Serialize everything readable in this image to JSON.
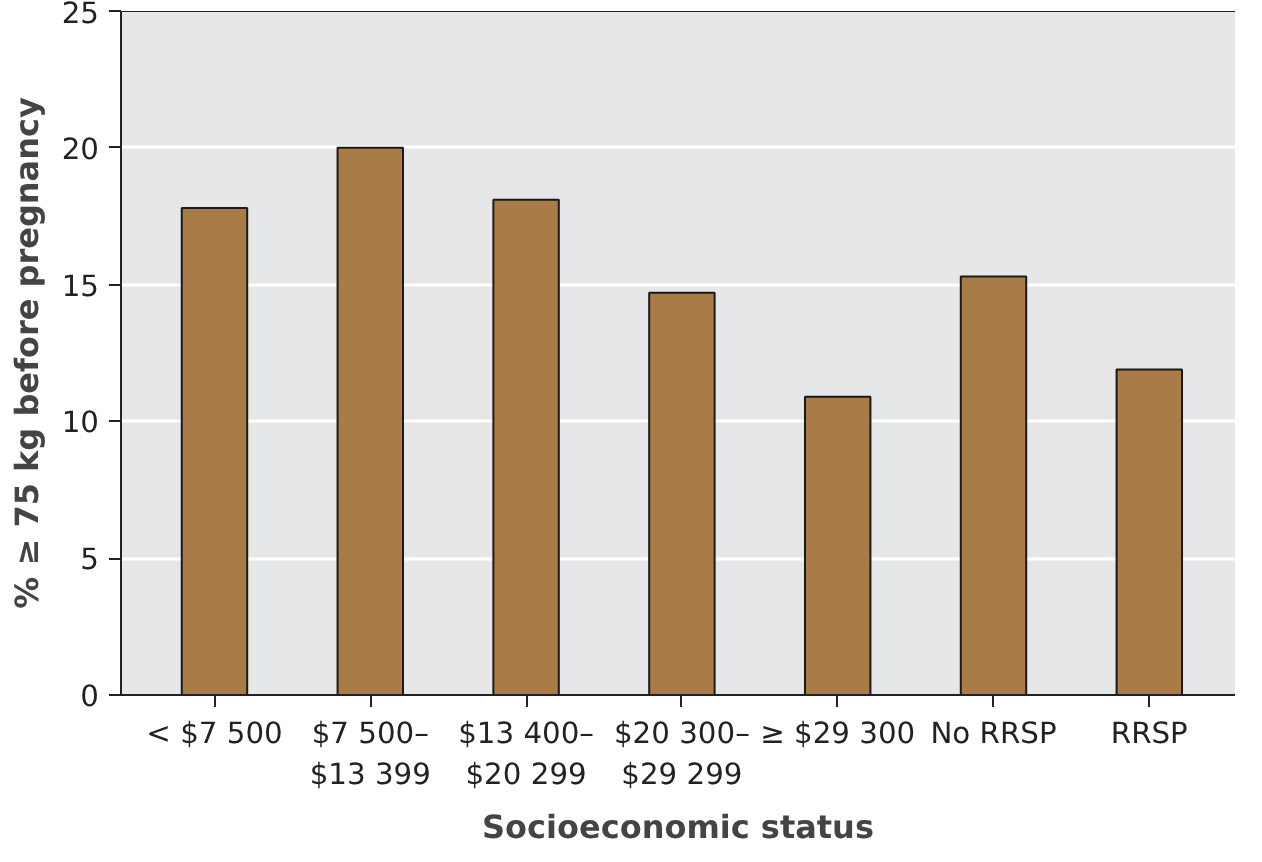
{
  "chart_data": {
    "type": "bar",
    "xlabel": "Socioeconomic status",
    "ylabel": "% ≥ 75 kg before pregnancy",
    "categories": [
      "< $7 500",
      "$7 500–\n$13 399",
      "$13 400–\n$20 299",
      "$20 300–\n$29 299",
      "≥ $29 300",
      "No RRSP",
      "RRSP"
    ],
    "values": [
      17.8,
      20.0,
      18.1,
      14.7,
      10.9,
      15.3,
      11.9
    ],
    "color": "#a97b47",
    "ylim": [
      0,
      25
    ],
    "yticks": [
      0,
      5,
      10,
      15,
      20,
      25
    ],
    "grid": "y"
  }
}
